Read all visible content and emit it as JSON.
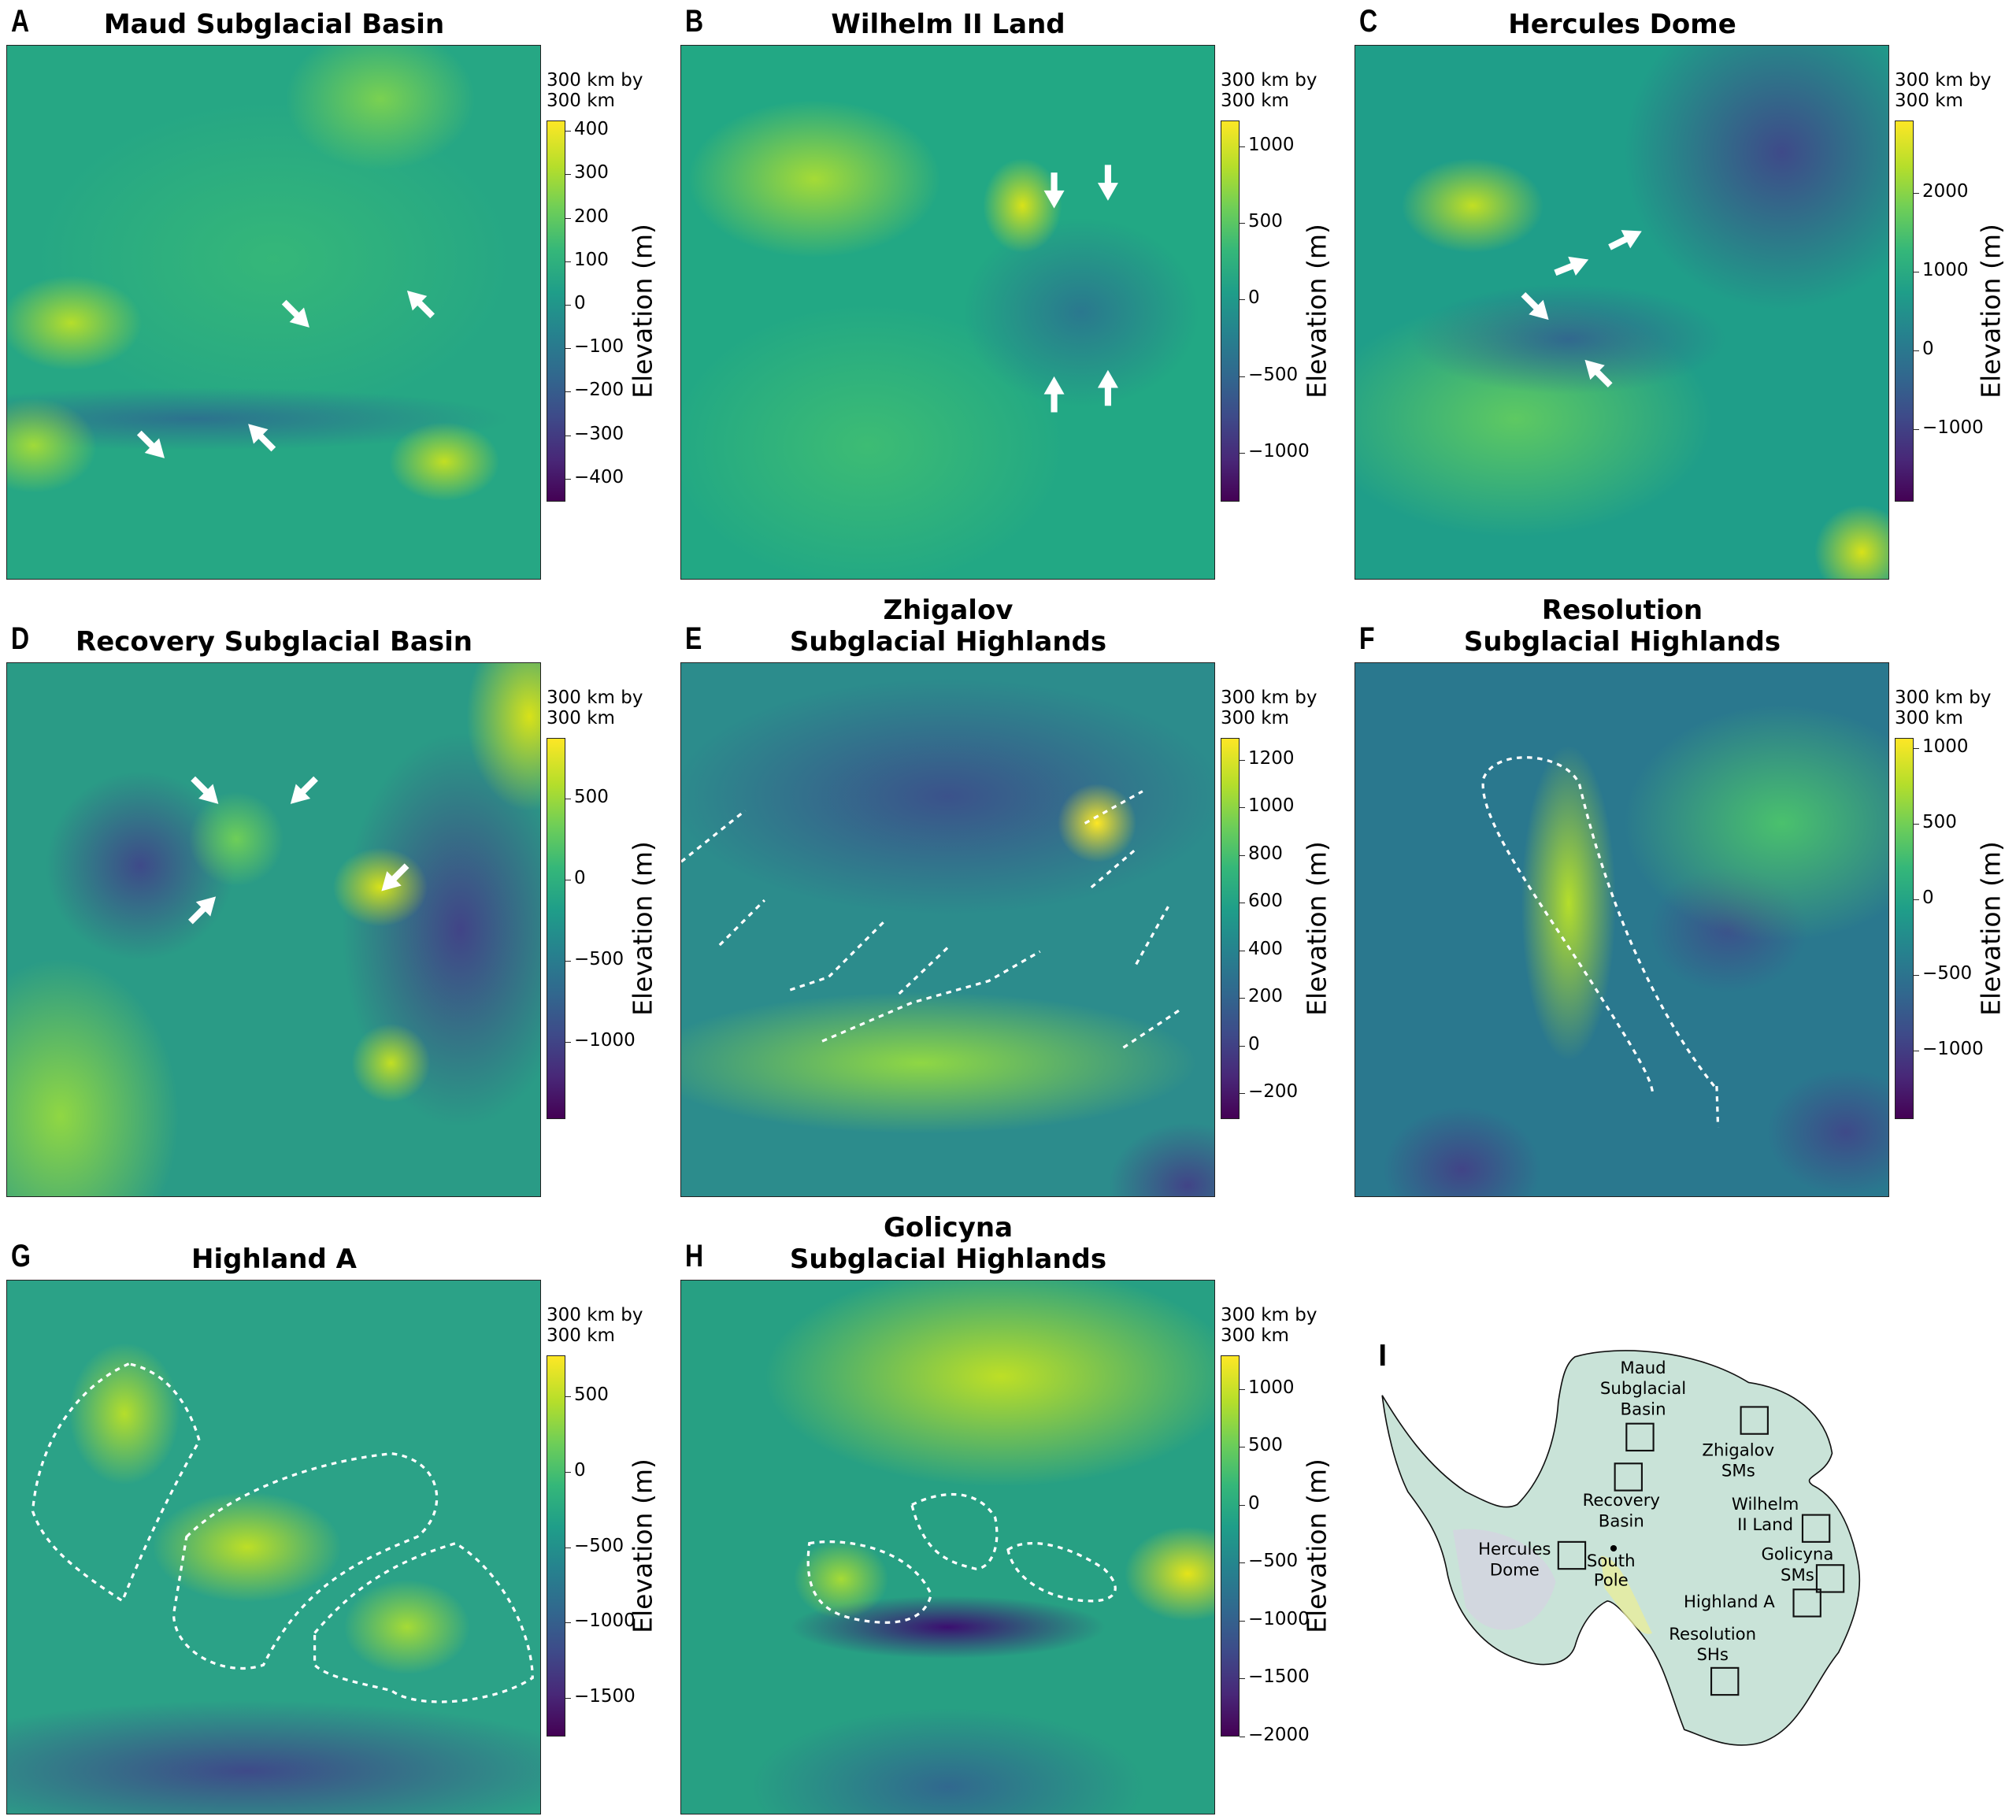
{
  "panels": [
    {
      "letter": "A",
      "title_lines": [
        "Maud Subglacial Basin"
      ],
      "scale_note_lines": [
        "300 km by",
        "300 km"
      ],
      "colorbar": {
        "label": "Elevation (m)",
        "colormap": "viridis",
        "range": [
          -453,
          424
        ],
        "ticks": [
          "400",
          "300",
          "200",
          "100",
          "0",
          "−100",
          "−200",
          "−300",
          "−400"
        ]
      },
      "annotations": "arrows"
    },
    {
      "letter": "B",
      "title_lines": [
        "Wilhelm II Land"
      ],
      "scale_note_lines": [
        "300 km by",
        "300 km"
      ],
      "colorbar": {
        "label": "Elevation (m)",
        "colormap": "viridis",
        "range": [
          -1319,
          1168
        ],
        "ticks": [
          "1000",
          "500",
          "0",
          "−500",
          "−1000"
        ]
      },
      "annotations": "arrows"
    },
    {
      "letter": "C",
      "title_lines": [
        "Hercules Dome"
      ],
      "scale_note_lines": [
        "300 km by",
        "300 km"
      ],
      "colorbar": {
        "label": "Elevation (m)",
        "colormap": "viridis",
        "range": [
          -1913,
          2913
        ],
        "ticks": [
          "2000",
          "1000",
          "0",
          "−1000"
        ]
      },
      "annotations": "arrows"
    },
    {
      "letter": "D",
      "title_lines": [
        "Recovery Subglacial Basin"
      ],
      "scale_note_lines": [
        "300 km by",
        "300 km"
      ],
      "colorbar": {
        "label": "Elevation (m)",
        "colormap": "viridis",
        "range": [
          -1476,
          873
        ],
        "ticks": [
          "500",
          "0",
          "−500",
          "−1000"
        ]
      },
      "annotations": "arrows"
    },
    {
      "letter": "E",
      "title_lines": [
        "Zhigalov",
        "Subglacial Highlands"
      ],
      "scale_note_lines": [
        "300 km by",
        "300 km"
      ],
      "colorbar": {
        "label": "Elevation (m)",
        "colormap": "viridis",
        "range": [
          -308,
          1292
        ],
        "ticks": [
          "1200",
          "1000",
          "800",
          "600",
          "400",
          "200",
          "0",
          "−200"
        ]
      },
      "annotations": "dashed-outlines"
    },
    {
      "letter": "F",
      "title_lines": [
        "Resolution",
        "Subglacial Highlands"
      ],
      "scale_note_lines": [
        "300 km by",
        "300 km"
      ],
      "colorbar": {
        "label": "Elevation (m)",
        "colormap": "viridis",
        "range": [
          -1451,
          1068
        ],
        "ticks": [
          "1000",
          "500",
          "0",
          "−500",
          "−1000"
        ]
      },
      "annotations": "dashed-outlines"
    },
    {
      "letter": "G",
      "title_lines": [
        "Highland A"
      ],
      "scale_note_lines": [
        "300 km by",
        "300 km"
      ],
      "colorbar": {
        "label": "Elevation (m)",
        "colormap": "viridis",
        "range": [
          -1756,
          773
        ],
        "ticks": [
          "500",
          "0",
          "−500",
          "−1000",
          "−1500"
        ]
      },
      "annotations": "dashed-outlines"
    },
    {
      "letter": "H",
      "title_lines": [
        "Golicyna",
        "Subglacial Highlands"
      ],
      "scale_note_lines": [
        "300 km by",
        "300 km"
      ],
      "colorbar": {
        "label": "Elevation (m)",
        "colormap": "viridis",
        "range": [
          -2000,
          1289
        ],
        "ticks": [
          "1000",
          "500",
          "0",
          "−500",
          "−1000",
          "−1500",
          "−2000"
        ]
      },
      "annotations": "dashed-outlines"
    }
  ],
  "overview": {
    "letter": "I",
    "regions": [
      {
        "label_lines": [
          "Maud",
          "Subglacial",
          "Basin"
        ]
      },
      {
        "label_lines": [
          "Recovery",
          "Basin"
        ]
      },
      {
        "label_lines": [
          "Zhigalov",
          "SMs"
        ]
      },
      {
        "label_lines": [
          "Wilhelm",
          "II Land"
        ]
      },
      {
        "label_lines": [
          "Hercules",
          "Dome"
        ]
      },
      {
        "label_lines": [
          "Golicyna",
          "SMs"
        ]
      },
      {
        "label_lines": [
          "Highland A"
        ]
      },
      {
        "label_lines": [
          "Resolution",
          "SHs"
        ]
      }
    ],
    "marker": {
      "label_lines": [
        "South",
        "Pole"
      ]
    }
  }
}
